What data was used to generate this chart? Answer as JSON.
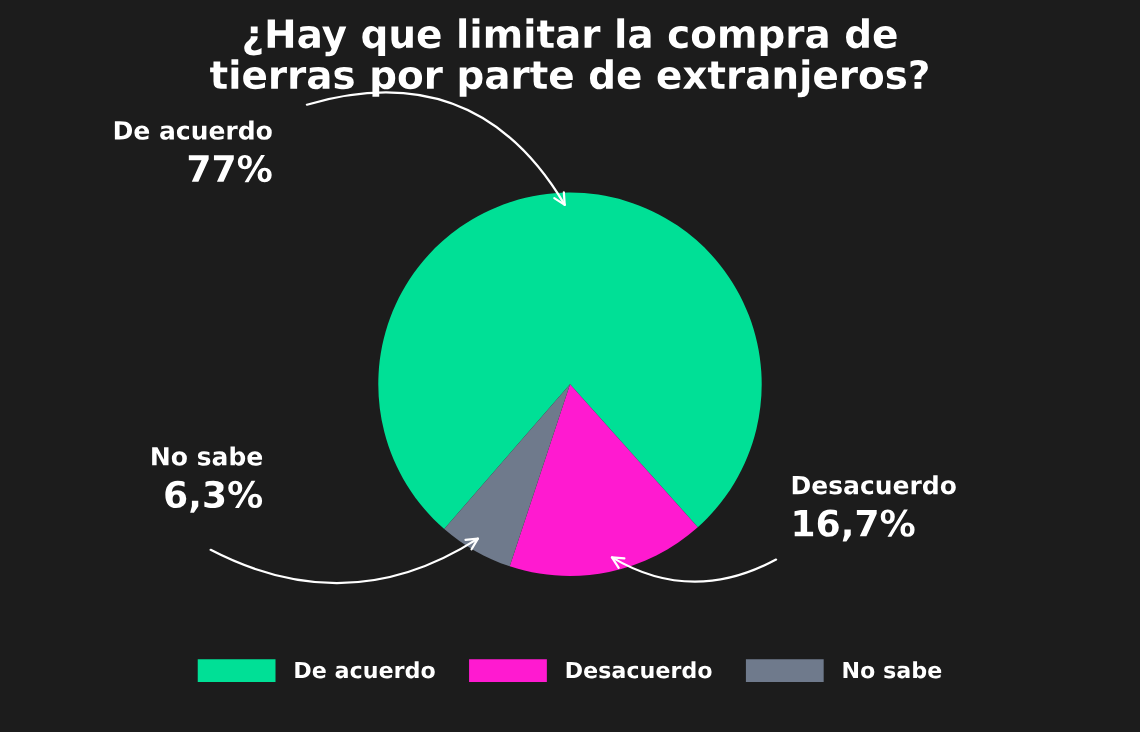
{
  "chart_data": {
    "type": "pie",
    "title": "¿Hay que limitar la compra de\ntierras por parte de extranjeros?",
    "categories": [
      "De acuerdo",
      "Desacuerdo",
      "No sabe"
    ],
    "values": [
      77,
      16.7,
      6.3
    ],
    "value_labels": [
      "77%",
      "16,7%",
      "6,3%"
    ],
    "colors": [
      "#00e096",
      "#ff1ad0",
      "#6f7a8c"
    ],
    "legend": "bottom"
  }
}
